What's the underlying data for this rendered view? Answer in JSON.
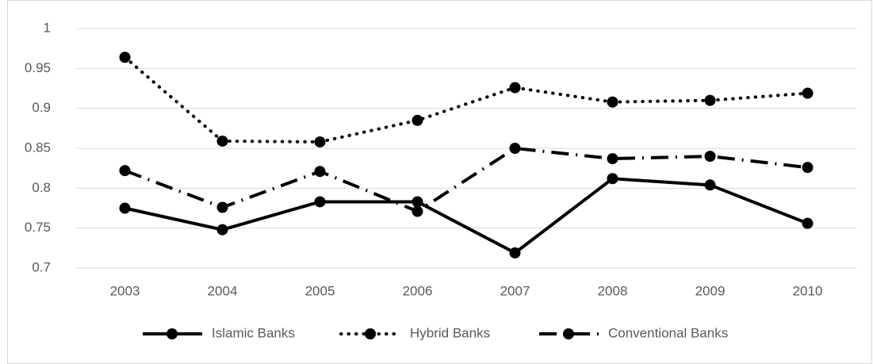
{
  "chart_data": {
    "type": "line",
    "categories": [
      "2003",
      "2004",
      "2005",
      "2006",
      "2007",
      "2008",
      "2009",
      "2010"
    ],
    "series": [
      {
        "name": "Islamic Banks",
        "color": "#000000",
        "dash": "solid",
        "values": [
          0.775,
          0.748,
          0.783,
          0.783,
          0.719,
          0.812,
          0.804,
          0.756
        ]
      },
      {
        "name": "Hybrid Banks",
        "color": "#000000",
        "dash": "dot",
        "values": [
          0.964,
          0.859,
          0.858,
          0.885,
          0.926,
          0.908,
          0.91,
          0.919
        ]
      },
      {
        "name": "Conventional Banks",
        "color": "#000000",
        "dash": "dash-dot",
        "values": [
          0.822,
          0.776,
          0.821,
          0.771,
          0.85,
          0.837,
          0.84,
          0.826
        ]
      }
    ],
    "ylim": [
      0.7,
      1
    ],
    "yticks": [
      0.7,
      0.75,
      0.8,
      0.85,
      0.9,
      0.95,
      1
    ],
    "grid": true,
    "legend": "bottom"
  }
}
